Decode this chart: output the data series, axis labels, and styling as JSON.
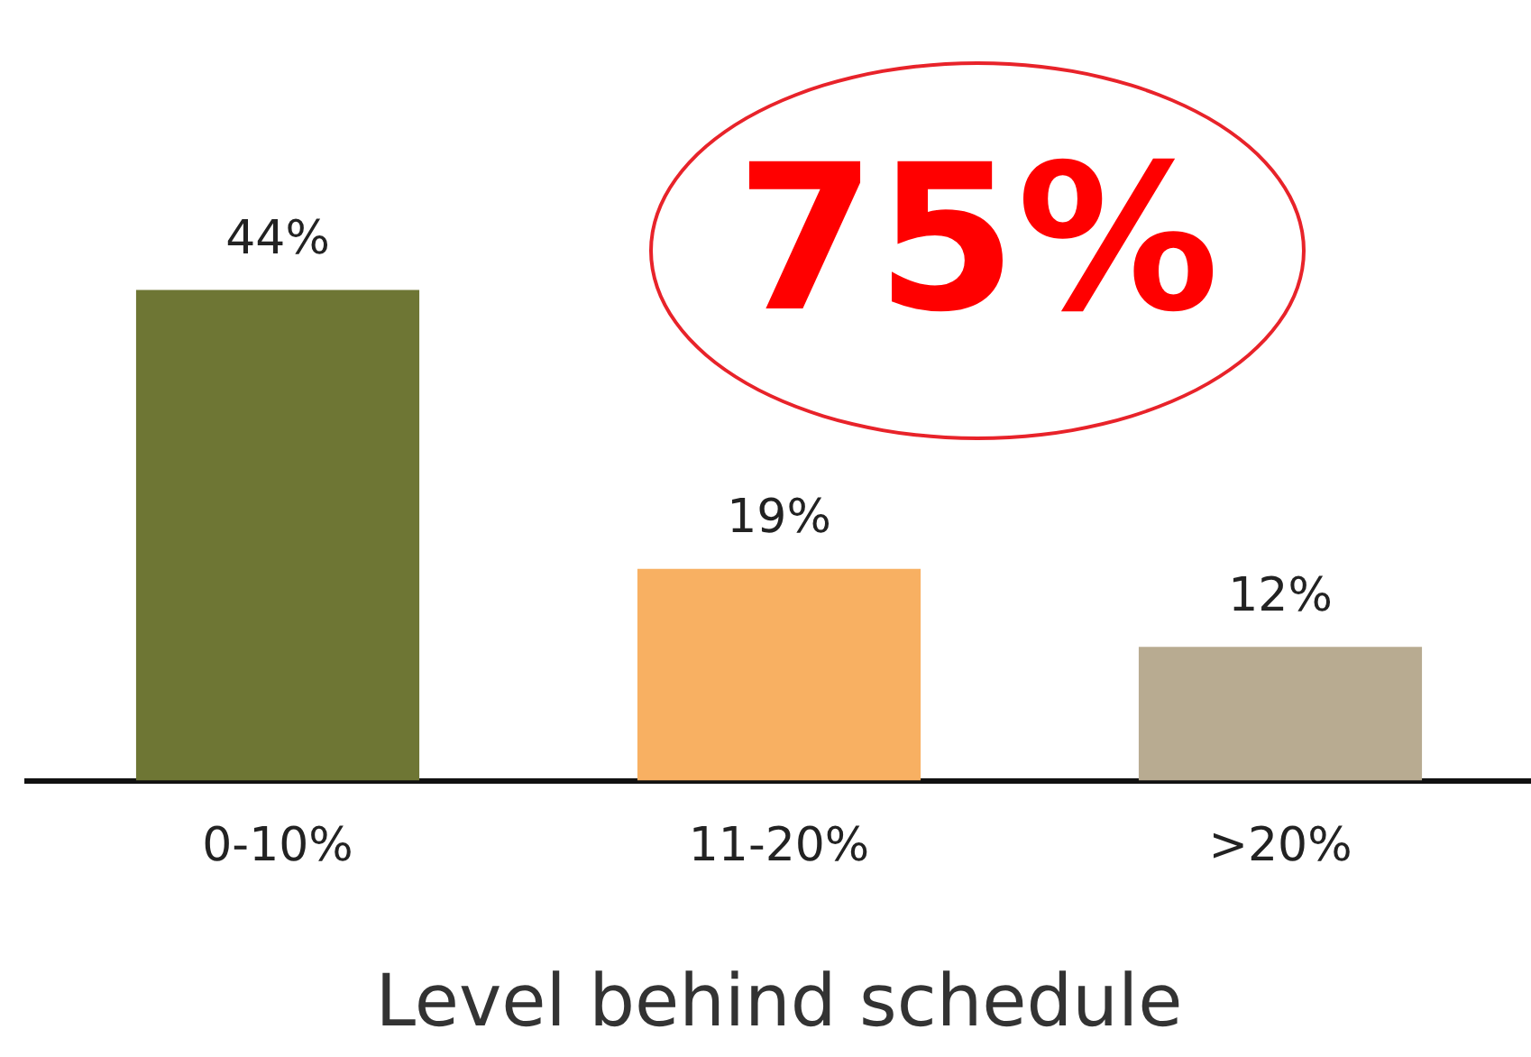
{
  "chart_data": {
    "type": "bar",
    "xlabel": "Level behind schedule",
    "categories": [
      "0-10%",
      "11-20%",
      ">20%"
    ],
    "values": [
      44,
      19,
      12
    ],
    "colors": [
      "#6e7634",
      "#f8b062",
      "#b8ab91"
    ],
    "value_labels": [
      "44%",
      "19%",
      "12%"
    ],
    "grid": false,
    "legend": false,
    "tick_labels": "x",
    "annotations": [
      "75%"
    ]
  }
}
